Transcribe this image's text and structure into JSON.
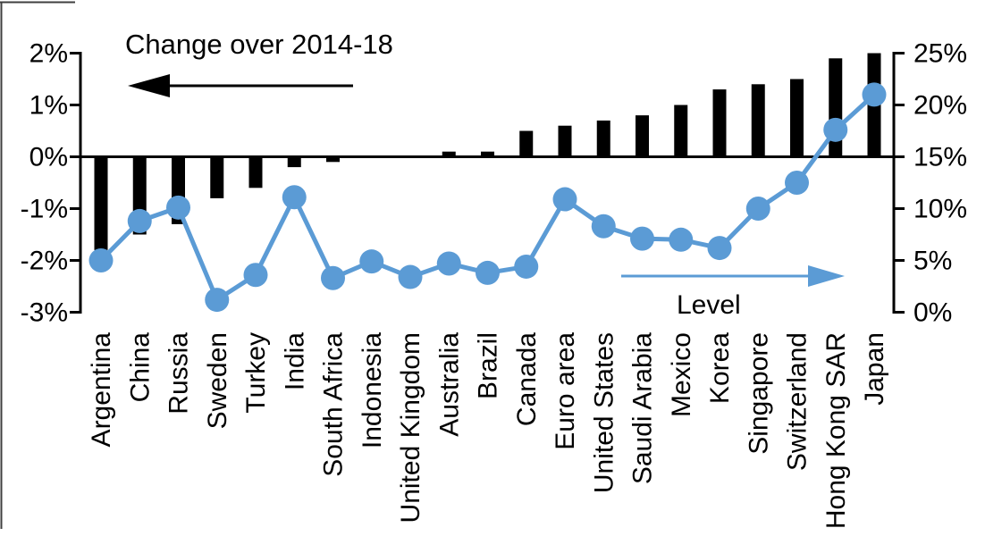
{
  "chart_data": {
    "type": "bar",
    "subtype": "combo-bar-line-dual-axis",
    "categories": [
      "Argentina",
      "China",
      "Russia",
      "Sweden",
      "Turkey",
      "India",
      "South Africa",
      "Indonesia",
      "United Kingdom",
      "Australia",
      "Brazil",
      "Canada",
      "Euro area",
      "United States",
      "Saudi Arabia",
      "Mexico",
      "Korea",
      "Singapore",
      "Switzerland",
      "Hong Kong SAR",
      "Japan"
    ],
    "series": [
      {
        "name": "Change over 2014-18",
        "type": "bar",
        "axis": "left",
        "color": "#000000",
        "values": [
          -1.8,
          -1.5,
          -1.3,
          -0.8,
          -0.6,
          -0.2,
          -0.1,
          0,
          0,
          0.1,
          0.1,
          0.5,
          0.6,
          0.7,
          0.8,
          1.0,
          1.3,
          1.4,
          1.5,
          1.9,
          2.0
        ]
      },
      {
        "name": "Level",
        "type": "line",
        "axis": "right",
        "color": "#5B9BD5",
        "values": [
          5.0,
          8.8,
          10.1,
          1.2,
          3.6,
          11.1,
          3.3,
          4.9,
          3.4,
          4.7,
          3.8,
          4.4,
          10.9,
          8.3,
          7.1,
          7.0,
          6.2,
          10.0,
          12.5,
          17.6,
          21.0
        ]
      }
    ],
    "left_axis": {
      "ticks": [
        "2%",
        "1%",
        "0%",
        "-1%",
        "-2%",
        "-3%"
      ],
      "tick_values": [
        2,
        1,
        0,
        -1,
        -2,
        -3
      ],
      "min": -3,
      "max": 2
    },
    "right_axis": {
      "ticks": [
        "25%",
        "20%",
        "15%",
        "10%",
        "5%",
        "0%"
      ],
      "tick_values": [
        25,
        20,
        15,
        10,
        5,
        0
      ],
      "min": 0,
      "max": 25
    },
    "annotations": {
      "bar_series_arrow": "points-left",
      "line_series_arrow": "points-right"
    },
    "grid": "off",
    "legend_position": "in-plot-arrow-labels"
  }
}
